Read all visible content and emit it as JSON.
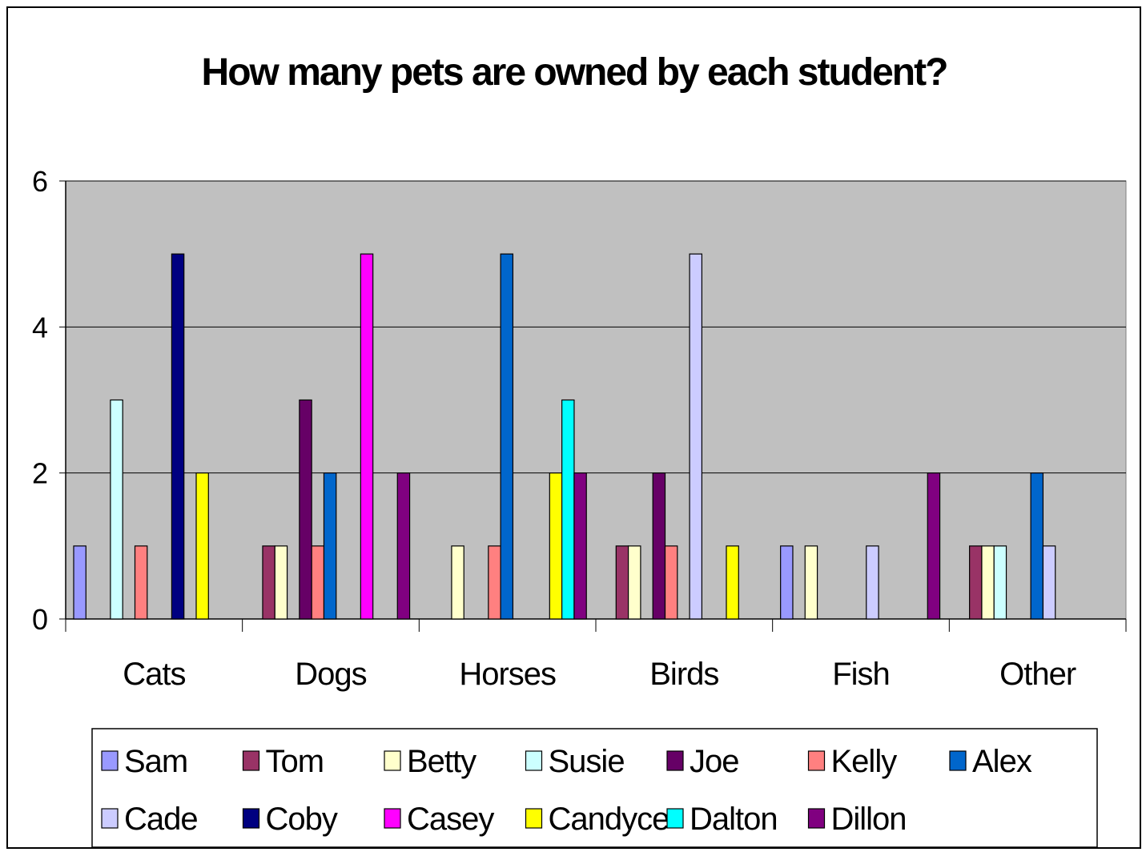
{
  "chart_data": {
    "type": "bar",
    "title": "How many pets are owned by each student?",
    "xlabel": "",
    "ylabel": "",
    "ylim": [
      0,
      6
    ],
    "yticks": [
      "0",
      "2",
      "4",
      "6"
    ],
    "grid": true,
    "legend_position": "bottom",
    "plot_background": "#c0c0c0",
    "categories": [
      "Cats",
      "Dogs",
      "Horses",
      "Birds",
      "Fish",
      "Other"
    ],
    "series": [
      {
        "name": "Sam",
        "color": "#9999ff",
        "values": [
          1,
          0,
          0,
          0,
          1,
          0
        ]
      },
      {
        "name": "Tom",
        "color": "#993366",
        "values": [
          0,
          1,
          0,
          1,
          0,
          1
        ]
      },
      {
        "name": "Betty",
        "color": "#ffffcc",
        "values": [
          0,
          1,
          1,
          1,
          1,
          1
        ]
      },
      {
        "name": "Susie",
        "color": "#ccffff",
        "values": [
          3,
          0,
          0,
          0,
          0,
          1
        ]
      },
      {
        "name": "Joe",
        "color": "#660066",
        "values": [
          0,
          3,
          0,
          2,
          0,
          0
        ]
      },
      {
        "name": "Kelly",
        "color": "#ff8080",
        "values": [
          1,
          1,
          1,
          1,
          0,
          0
        ]
      },
      {
        "name": "Alex",
        "color": "#0066cc",
        "values": [
          0,
          2,
          5,
          0,
          0,
          2
        ]
      },
      {
        "name": "Cade",
        "color": "#ccccff",
        "values": [
          0,
          0,
          0,
          5,
          1,
          1
        ]
      },
      {
        "name": "Coby",
        "color": "#000080",
        "values": [
          5,
          0,
          0,
          0,
          0,
          0
        ]
      },
      {
        "name": "Casey",
        "color": "#ff00ff",
        "values": [
          0,
          5,
          0,
          0,
          0,
          0
        ]
      },
      {
        "name": "Candyce",
        "color": "#ffff00",
        "values": [
          2,
          0,
          2,
          1,
          0,
          0
        ]
      },
      {
        "name": "Dalton",
        "color": "#00ffff",
        "values": [
          0,
          0,
          3,
          0,
          0,
          0
        ]
      },
      {
        "name": "Dillon",
        "color": "#800080",
        "values": [
          0,
          2,
          2,
          0,
          2,
          0
        ]
      }
    ]
  }
}
